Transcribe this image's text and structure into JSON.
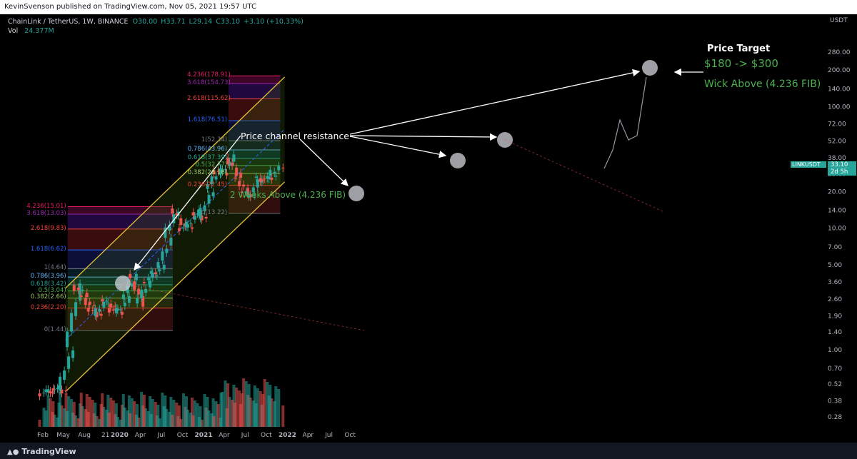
{
  "header": {
    "published": "KevinSvenson published on TradingView.com, Nov 05, 2021 19:57 UTC"
  },
  "legend": {
    "symbol": "ChainLink / TetherUS, 1W, BINANCE",
    "open": "O30.00",
    "high": "H33.71",
    "low": "L29.14",
    "close": "C33.10",
    "change": "+3.10 (+10.33%)",
    "vol_label": "Vol",
    "vol_value": "24.377M"
  },
  "price_scale": {
    "currency": "USDT",
    "ticks": [
      "280.00",
      "200.00",
      "140.00",
      "100.00",
      "72.00",
      "52.00",
      "38.00",
      "28.00",
      "20.00",
      "14.00",
      "10.00",
      "7.00",
      "5.00",
      "3.60",
      "2.60",
      "1.90",
      "1.40",
      "1.00",
      "0.70",
      "0.52",
      "0.38",
      "0.28"
    ],
    "label": "LINKUSDT",
    "label_price": "33.10",
    "label_time": "2d 5h"
  },
  "time_scale": {
    "ticks": [
      "Feb",
      "May",
      "Aug",
      "21",
      "2020",
      "Apr",
      "Jul",
      "Oct",
      "2021",
      "Apr",
      "Jul",
      "Oct",
      "2022",
      "Apr",
      "Jul",
      "Oct"
    ]
  },
  "annotations": {
    "price_target_title": "Price Target",
    "price_target_range": "$180 -> $300",
    "wick_above": "Wick Above (4.236 FIB)",
    "channel_resistance": "Price channel resistance",
    "two_weeks_above": "2 Weeks Above (4.236 FIB)"
  },
  "fib_sets": [
    {
      "name": "fib-2019",
      "levels": [
        {
          "text": "4.236(15.01)",
          "color": "#e91e63"
        },
        {
          "text": "3.618(13.03)",
          "color": "#9c27b0"
        },
        {
          "text": "2.618(9.83)",
          "color": "#f44336"
        },
        {
          "text": "1.618(6.62)",
          "color": "#2962ff"
        },
        {
          "text": "1(4.64)",
          "color": "#787b86"
        },
        {
          "text": "0.786(3.96)",
          "color": "#64b5f6"
        },
        {
          "text": "0.618(3.42)",
          "color": "#26a69a"
        },
        {
          "text": "0.5(3.04)",
          "color": "#4caf50"
        },
        {
          "text": "0.382(2.66)",
          "color": "#9ccc65"
        },
        {
          "text": "0.236(2.20)",
          "color": "#f44336"
        },
        {
          "text": "0(1.44)",
          "color": "#787b86"
        }
      ]
    },
    {
      "name": "fib-2021",
      "levels": [
        {
          "text": "4.236(178.91)",
          "color": "#e91e63"
        },
        {
          "text": "3.618(154.73)",
          "color": "#9c27b0"
        },
        {
          "text": "2.618(115.62)",
          "color": "#f44336"
        },
        {
          "text": "1.618(76.51)",
          "color": "#2962ff"
        },
        {
          "text": "1(52.34)",
          "color": "#787b86"
        },
        {
          "text": "0.786(43.96)",
          "color": "#64b5f6"
        },
        {
          "text": "0.618(37.39)",
          "color": "#26a69a"
        },
        {
          "text": "0.5(32.77)",
          "color": "#4caf50"
        },
        {
          "text": "0.382(28.16)",
          "color": "#9ccc65"
        },
        {
          "text": "0.236(22.45)",
          "color": "#f44336"
        },
        {
          "text": "0(13.22)",
          "color": "#787b86"
        }
      ]
    }
  ],
  "colors": {
    "up": "#26a69a",
    "down": "#ef5350",
    "channel": "#e8c33a",
    "background": "#000000"
  },
  "chart_data": {
    "type": "candlestick",
    "title": "ChainLink / TetherUS, 1W, BINANCE",
    "y_scale": "log",
    "ylim": [
      0.25,
      330
    ],
    "x_range": [
      "2019-02",
      "2022-11"
    ],
    "series": [
      {
        "name": "LINKUSDT weekly close",
        "dates": [
          "2019-02",
          "2019-03",
          "2019-04",
          "2019-05",
          "2019-06",
          "2019-07",
          "2019-08",
          "2019-09",
          "2019-10",
          "2019-11",
          "2019-12",
          "2020-01",
          "2020-02",
          "2020-03",
          "2020-04",
          "2020-05",
          "2020-06",
          "2020-07",
          "2020-08",
          "2020-09",
          "2020-10",
          "2020-11",
          "2020-12",
          "2021-01",
          "2021-02",
          "2021-03",
          "2021-04",
          "2021-05",
          "2021-06",
          "2021-07",
          "2021-08",
          "2021-09",
          "2021-10",
          "2021-11"
        ],
        "values": [
          0.45,
          0.48,
          0.46,
          1.05,
          3.4,
          2.8,
          2.2,
          1.9,
          2.6,
          2.2,
          2.0,
          2.6,
          4.2,
          2.4,
          3.6,
          4.2,
          4.7,
          8.3,
          14.5,
          10.0,
          10.2,
          13.5,
          12.0,
          21.0,
          30.0,
          28.0,
          38.0,
          26.0,
          20.0,
          18.0,
          26.0,
          25.0,
          27.0,
          33.1
        ]
      }
    ],
    "price_target": {
      "low": 180,
      "high": 300
    }
  }
}
